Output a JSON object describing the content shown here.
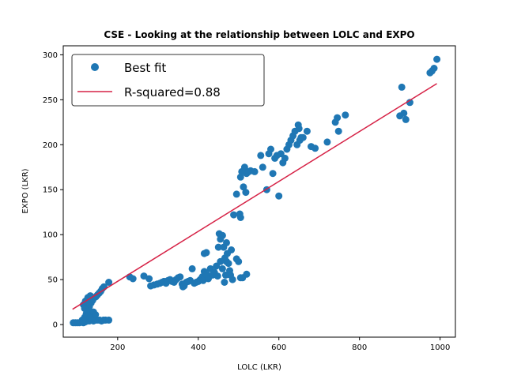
{
  "chart_data": {
    "type": "scatter",
    "title": "CSE - Looking at the relationship between LOLC and EXPO",
    "xlabel": "LOLC (LKR)",
    "ylabel": "EXPO (LKR)",
    "xlim": [
      65,
      1038
    ],
    "ylim": [
      -14,
      310
    ],
    "xticks": [
      200,
      400,
      600,
      800,
      1000
    ],
    "yticks": [
      0,
      50,
      100,
      150,
      200,
      250,
      300
    ],
    "grid": false,
    "legend": {
      "placement": "top-left",
      "entries": [
        {
          "label": "Best fit",
          "kind": "marker"
        },
        {
          "label": "R-squared=0.88",
          "kind": "line"
        }
      ]
    },
    "colors": {
      "points": "#1f77b4",
      "fit_line": "#d62246"
    },
    "fit_line": {
      "x": [
        88,
        992
      ],
      "y": [
        17,
        268
      ]
    },
    "series": [
      {
        "name": "Best fit",
        "points": [
          [
            90,
            2
          ],
          [
            95,
            2
          ],
          [
            100,
            2
          ],
          [
            105,
            2
          ],
          [
            110,
            3
          ],
          [
            115,
            2
          ],
          [
            120,
            3
          ],
          [
            125,
            4
          ],
          [
            130,
            4
          ],
          [
            135,
            5
          ],
          [
            140,
            4
          ],
          [
            145,
            5
          ],
          [
            150,
            5
          ],
          [
            155,
            5
          ],
          [
            160,
            4
          ],
          [
            165,
            5
          ],
          [
            170,
            5
          ],
          [
            178,
            5
          ],
          [
            112,
            5
          ],
          [
            118,
            8
          ],
          [
            122,
            12
          ],
          [
            126,
            16
          ],
          [
            130,
            20
          ],
          [
            134,
            24
          ],
          [
            138,
            27
          ],
          [
            142,
            30
          ],
          [
            146,
            31
          ],
          [
            150,
            33
          ],
          [
            154,
            35
          ],
          [
            158,
            37
          ],
          [
            162,
            40
          ],
          [
            166,
            42
          ],
          [
            178,
            47
          ],
          [
            115,
            22
          ],
          [
            120,
            26
          ],
          [
            125,
            28
          ],
          [
            130,
            25
          ],
          [
            118,
            18
          ],
          [
            124,
            14
          ],
          [
            128,
            10
          ],
          [
            132,
            8
          ],
          [
            136,
            7
          ],
          [
            126,
            30
          ],
          [
            132,
            32
          ],
          [
            140,
            14
          ],
          [
            145,
            11
          ],
          [
            230,
            53
          ],
          [
            238,
            51
          ],
          [
            265,
            54
          ],
          [
            278,
            51
          ],
          [
            282,
            43
          ],
          [
            290,
            44
          ],
          [
            298,
            45
          ],
          [
            305,
            46
          ],
          [
            310,
            47
          ],
          [
            315,
            48
          ],
          [
            320,
            46
          ],
          [
            325,
            49
          ],
          [
            330,
            50
          ],
          [
            335,
            48
          ],
          [
            340,
            47
          ],
          [
            345,
            50
          ],
          [
            350,
            52
          ],
          [
            355,
            53
          ],
          [
            360,
            45
          ],
          [
            362,
            42
          ],
          [
            365,
            43
          ],
          [
            370,
            47
          ],
          [
            375,
            48
          ],
          [
            380,
            49
          ],
          [
            385,
            62
          ],
          [
            390,
            46
          ],
          [
            395,
            47
          ],
          [
            400,
            48
          ],
          [
            405,
            50
          ],
          [
            410,
            53
          ],
          [
            412,
            49
          ],
          [
            415,
            59
          ],
          [
            420,
            56
          ],
          [
            425,
            51
          ],
          [
            430,
            62
          ],
          [
            435,
            55
          ],
          [
            440,
            58
          ],
          [
            445,
            65
          ],
          [
            448,
            54
          ],
          [
            415,
            79
          ],
          [
            420,
            80
          ],
          [
            450,
            86
          ],
          [
            452,
            101
          ],
          [
            455,
            95
          ],
          [
            460,
            99
          ],
          [
            463,
            86
          ],
          [
            466,
            74
          ],
          [
            470,
            91
          ],
          [
            470,
            70
          ],
          [
            472,
            79
          ],
          [
            475,
            68
          ],
          [
            478,
            60
          ],
          [
            480,
            55
          ],
          [
            482,
            83
          ],
          [
            455,
            70
          ],
          [
            460,
            62
          ],
          [
            465,
            47
          ],
          [
            468,
            55
          ],
          [
            485,
            50
          ],
          [
            495,
            73
          ],
          [
            500,
            70
          ],
          [
            505,
            52
          ],
          [
            510,
            52
          ],
          [
            520,
            56
          ],
          [
            488,
            122
          ],
          [
            503,
            123
          ],
          [
            505,
            119
          ],
          [
            495,
            145
          ],
          [
            505,
            164
          ],
          [
            508,
            170
          ],
          [
            512,
            153
          ],
          [
            515,
            175
          ],
          [
            518,
            147
          ],
          [
            520,
            168
          ],
          [
            525,
            170
          ],
          [
            530,
            171
          ],
          [
            540,
            170
          ],
          [
            555,
            188
          ],
          [
            560,
            175
          ],
          [
            570,
            150
          ],
          [
            575,
            190
          ],
          [
            580,
            195
          ],
          [
            585,
            168
          ],
          [
            590,
            185
          ],
          [
            595,
            188
          ],
          [
            600,
            143
          ],
          [
            605,
            190
          ],
          [
            610,
            180
          ],
          [
            615,
            185
          ],
          [
            620,
            195
          ],
          [
            625,
            200
          ],
          [
            630,
            205
          ],
          [
            635,
            210
          ],
          [
            640,
            215
          ],
          [
            645,
            200
          ],
          [
            648,
            222
          ],
          [
            650,
            218
          ],
          [
            652,
            205
          ],
          [
            655,
            208
          ],
          [
            660,
            208
          ],
          [
            670,
            215
          ],
          [
            680,
            198
          ],
          [
            690,
            196
          ],
          [
            720,
            203
          ],
          [
            740,
            225
          ],
          [
            745,
            230
          ],
          [
            748,
            215
          ],
          [
            765,
            233
          ],
          [
            900,
            232
          ],
          [
            905,
            264
          ],
          [
            910,
            235
          ],
          [
            915,
            228
          ],
          [
            925,
            247
          ],
          [
            975,
            280
          ],
          [
            980,
            282
          ],
          [
            985,
            285
          ],
          [
            992,
            295
          ]
        ]
      }
    ]
  }
}
